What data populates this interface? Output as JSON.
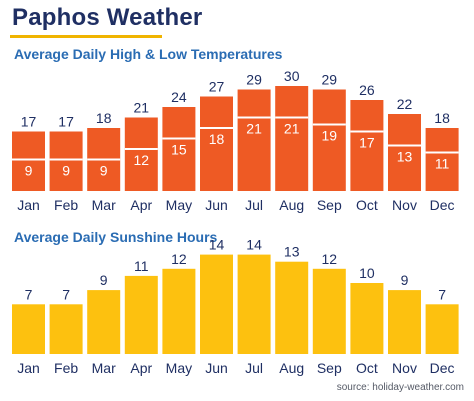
{
  "page": {
    "title": "Paphos Weather",
    "source": "source: holiday-weather.com"
  },
  "colors": {
    "title": "#1f2f63",
    "subtitle": "#2a6cb3",
    "title_rule": "#f0b400",
    "temp_bar": "#ee5a24",
    "sun_bar": "#fdc10f",
    "low_line": "#ffffff"
  },
  "chart_data": [
    {
      "type": "bar",
      "title": "Average Daily High & Low Temperatures",
      "categories": [
        "Jan",
        "Feb",
        "Mar",
        "Apr",
        "May",
        "Jun",
        "Jul",
        "Aug",
        "Sep",
        "Oct",
        "Nov",
        "Dec"
      ],
      "series": [
        {
          "values": [
            17,
            17,
            18,
            21,
            24,
            27,
            29,
            30,
            29,
            26,
            22,
            18
          ]
        },
        {
          "values": [
            9,
            9,
            9,
            12,
            15,
            18,
            21,
            21,
            19,
            17,
            13,
            11
          ]
        }
      ],
      "xlabel": "",
      "ylabel": "",
      "ylim": [
        0,
        30
      ],
      "grid": false,
      "legend": "none"
    },
    {
      "type": "bar",
      "title": "Average Daily Sunshine Hours",
      "categories": [
        "Jan",
        "Feb",
        "Mar",
        "Apr",
        "May",
        "Jun",
        "Jul",
        "Aug",
        "Sep",
        "Oct",
        "Nov",
        "Dec"
      ],
      "series": [
        {
          "values": [
            7,
            7,
            9,
            11,
            12,
            14,
            14,
            13,
            12,
            10,
            9,
            7
          ]
        }
      ],
      "xlabel": "",
      "ylabel": "",
      "ylim": [
        0,
        14
      ],
      "grid": false,
      "legend": "none"
    }
  ]
}
